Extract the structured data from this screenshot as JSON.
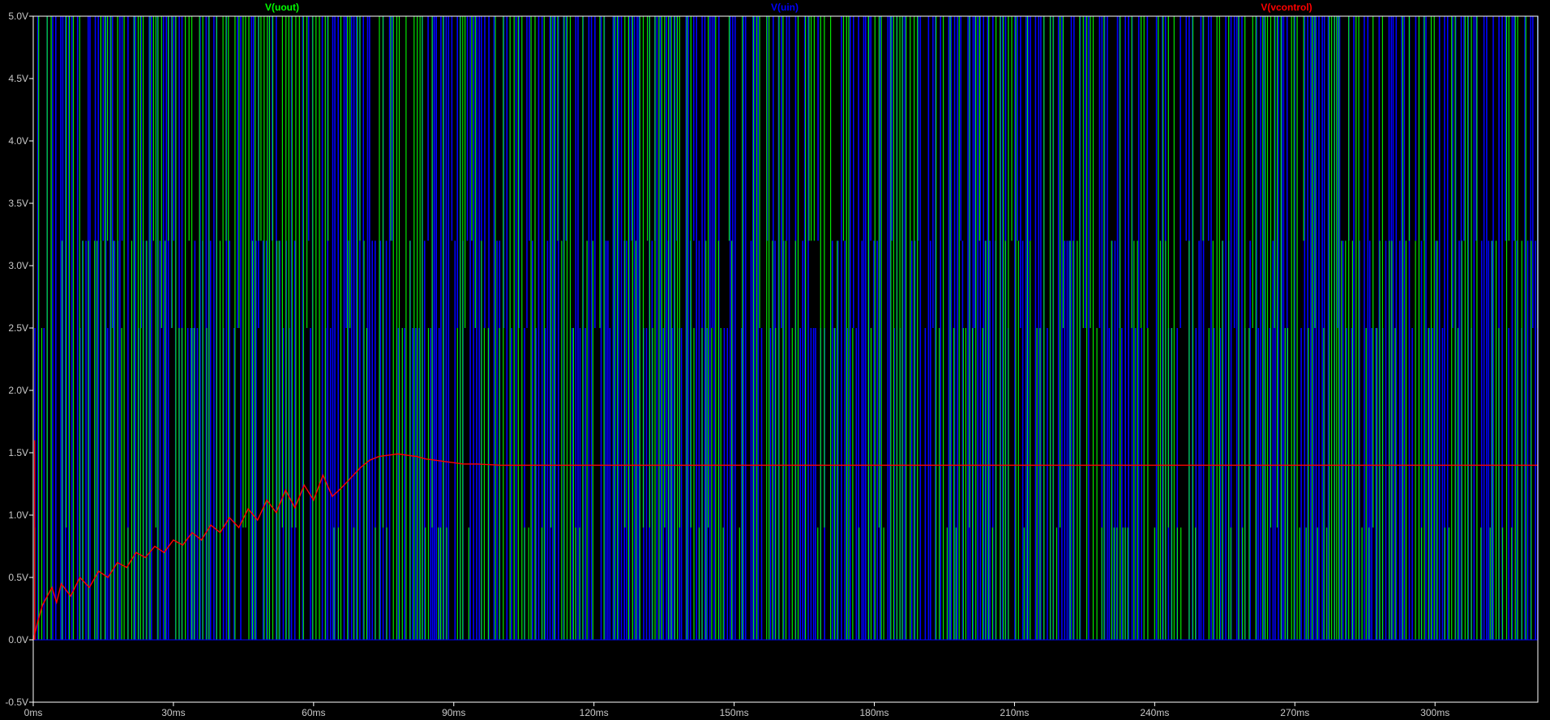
{
  "chart_data": {
    "type": "line",
    "title": "",
    "xlabel": "",
    "ylabel": "",
    "xlim": [
      0,
      322
    ],
    "ylim": [
      -0.5,
      5.0
    ],
    "x_unit": "ms",
    "x_ticks": [
      0,
      30,
      60,
      90,
      120,
      150,
      180,
      210,
      240,
      270,
      300
    ],
    "x_tick_labels": [
      "0ms",
      "30ms",
      "60ms",
      "90ms",
      "120ms",
      "150ms",
      "180ms",
      "210ms",
      "240ms",
      "270ms",
      "300ms"
    ],
    "y_ticks": [
      -0.5,
      0.0,
      0.5,
      1.0,
      1.5,
      2.0,
      2.5,
      3.0,
      3.5,
      4.0,
      4.5,
      5.0
    ],
    "y_tick_labels": [
      "-0.5V",
      "0.0V",
      "0.5V",
      "1.0V",
      "1.5V",
      "2.0V",
      "2.5V",
      "3.0V",
      "3.5V",
      "4.0V",
      "4.5V",
      "5.0V"
    ],
    "grid": false,
    "legend_position": "top",
    "series": [
      {
        "name": "V(uout)",
        "color": "#00ff00",
        "kind": "pwm",
        "low": 0.0,
        "high": 5.0,
        "description_levels": [
          0.0,
          0.9,
          2.5,
          3.2,
          5.0
        ]
      },
      {
        "name": "V(uin)",
        "color": "#0000ff",
        "kind": "pwm",
        "low": 0.0,
        "high": 5.0
      },
      {
        "name": "V(vcontrol)",
        "color": "#ff0000",
        "kind": "line",
        "x": [
          0,
          1,
          2,
          4,
          5,
          6,
          8,
          10,
          12,
          14,
          16,
          18,
          20,
          22,
          24,
          26,
          28,
          30,
          32,
          34,
          36,
          38,
          40,
          42,
          44,
          46,
          48,
          50,
          52,
          54,
          56,
          58,
          60,
          62,
          64,
          66,
          68,
          70,
          72,
          74,
          76,
          78,
          80,
          82,
          84,
          86,
          88,
          90,
          92,
          95,
          100,
          110,
          130,
          160,
          200,
          250,
          300,
          322
        ],
        "y": [
          0.0,
          0.15,
          0.28,
          0.42,
          0.3,
          0.45,
          0.35,
          0.5,
          0.42,
          0.55,
          0.5,
          0.62,
          0.58,
          0.7,
          0.66,
          0.75,
          0.7,
          0.8,
          0.76,
          0.86,
          0.8,
          0.92,
          0.86,
          0.98,
          0.9,
          1.05,
          0.96,
          1.12,
          1.02,
          1.2,
          1.06,
          1.24,
          1.12,
          1.32,
          1.15,
          1.22,
          1.3,
          1.38,
          1.44,
          1.47,
          1.48,
          1.49,
          1.48,
          1.47,
          1.45,
          1.44,
          1.43,
          1.42,
          1.41,
          1.41,
          1.4,
          1.4,
          1.4,
          1.4,
          1.4,
          1.4,
          1.4,
          1.4
        ]
      }
    ]
  }
}
